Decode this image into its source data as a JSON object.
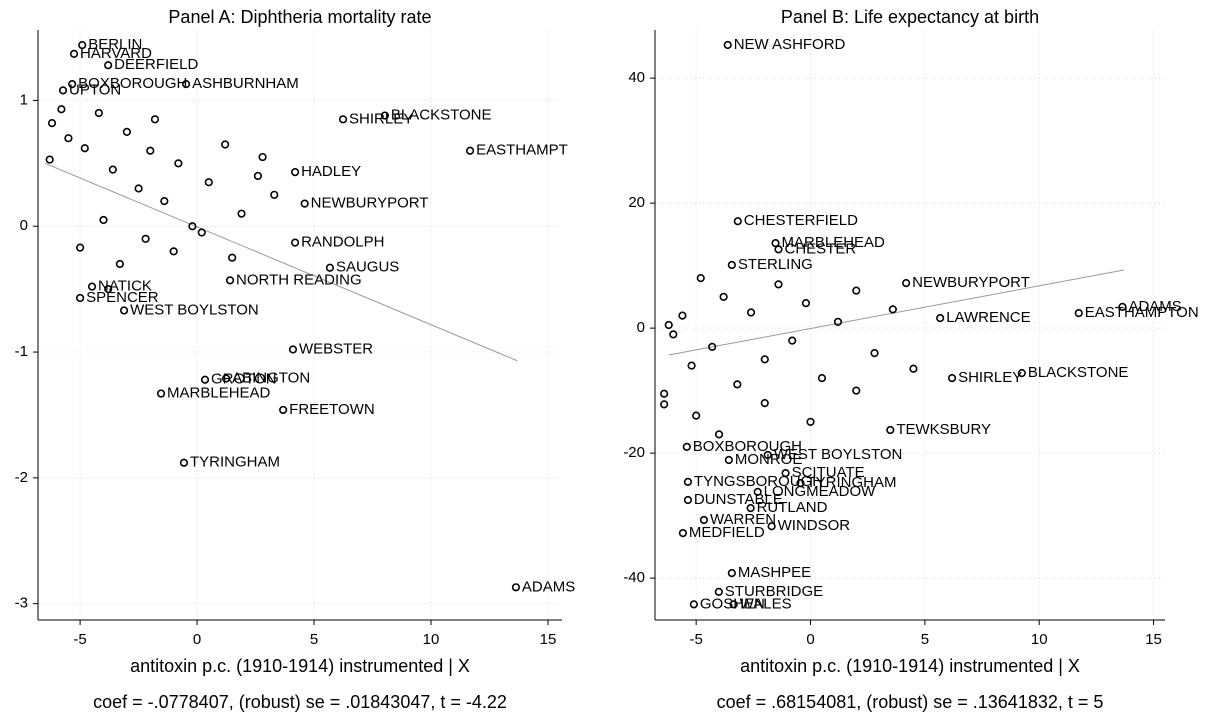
{
  "chart_data": [
    {
      "type": "scatter",
      "title": "Panel A: Diphtheria mortality rate",
      "x_label": "antitoxin p.c. (1910-1914) instrumented | X",
      "note": "coef = -.0778407, (robust) se = .01843047, t = -4.22",
      "xlim": [
        -6.8,
        15.6
      ],
      "ylim": [
        -3.13,
        1.56
      ],
      "xticks": [
        -5,
        0,
        5,
        10,
        15
      ],
      "yticks": [
        -3,
        -2,
        -1,
        0,
        1
      ],
      "grid": true,
      "color": "#000000",
      "fit_color": "#999999",
      "fit_line": {
        "x": [
          -6.5,
          13.7
        ],
        "y": [
          0.5,
          -1.07
        ]
      },
      "labels": [
        "BERLIN",
        "HARVARD",
        "DEERFIELD",
        "BOXBOROUGH",
        "ASHBURNHAM",
        "UPTON",
        "BLACKSTONE",
        "SHIRLEY",
        "EASTHAMPT",
        "NEWBURYPORT",
        "RANDOLPH",
        "WEBSTER",
        "GROTON",
        "ABINGTON",
        "MARBLEHEAD",
        "FREETOWN",
        "TYRINGHAM",
        "ADAMS",
        "WEST BOYLSTON",
        "SPENCER",
        "NORTH READING",
        "NATICK",
        "SAUGUS",
        "HADLEY",
        null,
        null,
        null,
        null,
        null,
        null,
        null,
        null,
        null,
        null,
        null,
        null,
        null,
        null,
        null,
        null,
        null,
        null,
        null,
        null,
        null,
        null,
        null,
        null,
        null,
        null,
        null,
        null
      ],
      "x": [
        -4.91,
        -5.26,
        -3.8,
        -5.34,
        -0.47,
        -5.73,
        8.03,
        6.24,
        11.67,
        4.6,
        4.19,
        4.1,
        0.34,
        1.24,
        -1.54,
        3.68,
        -0.56,
        13.63,
        -3.12,
        -5.0,
        1.41,
        -4.49,
        5.68,
        4.19,
        -6.3,
        -6.2,
        -5.5,
        -4.8,
        -4.2,
        -3.6,
        -3.0,
        -2.5,
        -2.0,
        -1.4,
        -0.8,
        -0.2,
        0.5,
        1.2,
        1.9,
        2.6,
        3.3,
        -5.0,
        -4.0,
        -3.3,
        -2.2,
        -1.0,
        0.2,
        1.5,
        2.8,
        -5.8,
        -3.8,
        -1.8
      ],
      "y": [
        1.44,
        1.37,
        1.28,
        1.13,
        1.13,
        1.08,
        0.88,
        0.85,
        0.6,
        0.18,
        -0.13,
        -0.98,
        -1.22,
        -1.21,
        -1.33,
        -1.46,
        -1.88,
        -2.87,
        -0.67,
        -0.57,
        -0.43,
        -0.48,
        -0.33,
        0.43,
        0.53,
        0.82,
        0.7,
        0.62,
        0.9,
        0.45,
        0.75,
        0.3,
        0.6,
        0.2,
        0.5,
        0.0,
        0.35,
        0.65,
        0.1,
        0.4,
        0.25,
        -0.17,
        0.05,
        -0.3,
        -0.1,
        -0.2,
        -0.05,
        -0.25,
        0.55,
        0.93,
        -0.5,
        0.85
      ]
    },
    {
      "type": "scatter",
      "title": "Panel B: Life expectancy at birth",
      "x_label": "antitoxin p.c. (1910-1914) instrumented | X",
      "note": "coef = .68154081, (robust) se = .13641832, t = 5",
      "xlim": [
        -6.8,
        15.5
      ],
      "ylim": [
        -46.7,
        47.7
      ],
      "xticks": [
        -5,
        0,
        5,
        10,
        15
      ],
      "yticks": [
        -40,
        -20,
        0,
        20,
        40
      ],
      "grid": true,
      "color": "#000000",
      "fit_color": "#999999",
      "fit_line": {
        "x": [
          -6.2,
          13.7
        ],
        "y": [
          -4.3,
          9.3
        ]
      },
      "labels": [
        "NEW ASHFORD",
        "CHESTERFIELD",
        "MARBLEHEAD",
        "CHESTER",
        "STERLING",
        "NEWBURYPORT",
        "ADAMS",
        "EASTHAMPTON",
        "LAWRENCE",
        "BLACKSTONE",
        "SHIRLEY",
        "TEWKSBURY",
        "BOXBOROUGH",
        "WEST BOYLSTON",
        "MONROE",
        "SCITUATE",
        "TYNGSBOROUGH",
        "TYRINGHAM",
        "LONGMEADOW",
        "DUNSTABLE",
        "RUTLAND",
        "WARREN",
        "WINDSOR",
        "MEDFIELD",
        "MASHPEE",
        "STURBRIDGE",
        "GOSHEN",
        "WALES",
        null,
        null,
        null,
        null,
        null,
        null,
        null,
        null,
        null,
        null,
        null,
        null,
        null,
        null,
        null,
        null,
        null,
        null,
        null,
        null,
        null,
        null,
        null,
        null,
        null,
        null
      ],
      "x": [
        -3.62,
        -3.18,
        -1.53,
        -1.4,
        -3.44,
        4.18,
        13.64,
        11.73,
        5.67,
        9.24,
        6.19,
        3.49,
        -5.41,
        -1.87,
        -3.57,
        -1.09,
        -5.36,
        -0.44,
        -2.31,
        -5.36,
        -2.62,
        -4.66,
        -1.7,
        -5.58,
        -3.44,
        -4.01,
        -5.1,
        -3.36,
        -6.4,
        -6.4,
        -6.0,
        -5.6,
        -5.2,
        -4.8,
        -4.3,
        -3.8,
        -3.2,
        -2.6,
        -2.0,
        -1.4,
        -0.8,
        -0.2,
        0.5,
        1.2,
        2.0,
        2.8,
        3.6,
        4.5,
        -6.2,
        -5.0,
        -4.0,
        -2.0,
        0.0,
        2.0
      ],
      "y": [
        45.3,
        17.1,
        13.6,
        12.6,
        10.1,
        7.2,
        3.4,
        2.4,
        1.6,
        -7.2,
        -8.0,
        -16.3,
        -19.0,
        -20.3,
        -21.1,
        -23.2,
        -24.6,
        -24.8,
        -26.2,
        -27.5,
        -28.8,
        -30.7,
        -31.7,
        -32.8,
        -39.2,
        -42.2,
        -44.2,
        -44.2,
        -10.5,
        -12.2,
        -1.0,
        2.0,
        -6.0,
        8.0,
        -3.0,
        5.0,
        -9.0,
        2.5,
        -5.0,
        7.0,
        -2.0,
        4.0,
        -8.0,
        1.0,
        6.0,
        -4.0,
        3.0,
        -6.5,
        0.5,
        -14.0,
        -17.0,
        -12.0,
        -15.0,
        -10.0
      ]
    }
  ]
}
